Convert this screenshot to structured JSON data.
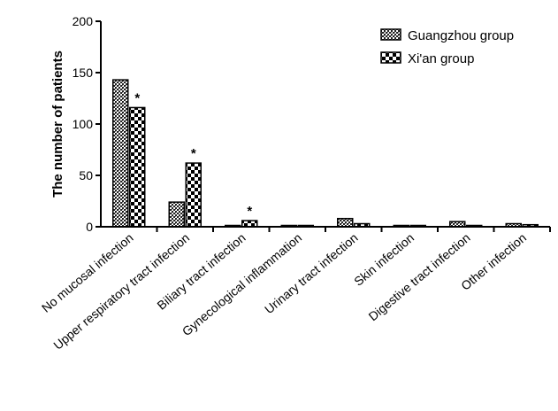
{
  "chart_data": {
    "type": "bar",
    "ylabel": "The number of patients",
    "xlabel": "",
    "ylim": [
      0,
      200
    ],
    "yticks": [
      0,
      50,
      100,
      150,
      200
    ],
    "categories": [
      "No mucosal infection",
      "Upper respiratory tract infection",
      "Biliary tract infection",
      "Gynecological inflammation",
      "Urinary tract infection",
      "Skin infection",
      "Digestive tract infection",
      "Other infection"
    ],
    "series": [
      {
        "name": "Guangzhou group",
        "values": [
          143,
          24,
          0,
          1,
          8,
          1,
          5,
          3
        ]
      },
      {
        "name": "Xi'an group",
        "values": [
          116,
          62,
          6,
          1,
          3,
          1,
          1,
          2
        ]
      }
    ],
    "annotations": [
      {
        "category_index": 0,
        "series_index": 1,
        "text": "*"
      },
      {
        "category_index": 1,
        "series_index": 1,
        "text": "*"
      },
      {
        "category_index": 2,
        "series_index": 1,
        "text": "*"
      }
    ],
    "legend_position": "top-right",
    "grid": false
  }
}
